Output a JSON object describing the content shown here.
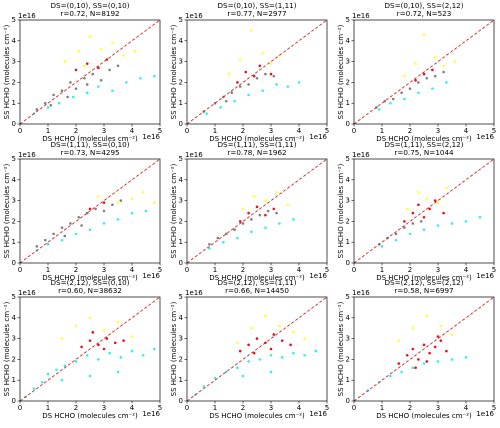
{
  "chart_data": [
    {
      "type": "scatter",
      "title": "DS=(0,10), SS=(0,10)",
      "subtitle": "r=0.72, N=8192",
      "xlabel": "DS HCHO (molecules cm⁻²)",
      "ylabel": "SS HCHO (molecules cm⁻²)",
      "x_offset": "1e16",
      "y_offset": "1e16",
      "xlim": [
        0,
        5
      ],
      "ylim": [
        0,
        5
      ],
      "xticks": [
        0,
        1,
        2,
        3,
        4,
        5
      ],
      "yticks": [
        0,
        1,
        2,
        3,
        4,
        5
      ],
      "identity_line": {
        "color": "#d62728"
      },
      "series": [
        {
          "color": "#808080",
          "x": [
            0.6,
            0.9,
            1.2,
            1.5,
            1.8,
            2.0,
            2.3,
            2.6,
            2.9,
            3.2,
            3.5,
            1.1,
            1.7,
            2.4
          ],
          "values": [
            0.7,
            1.0,
            1.4,
            1.6,
            2.0,
            1.7,
            2.2,
            2.4,
            2.1,
            2.6,
            2.8,
            0.9,
            1.3,
            1.9
          ]
        },
        {
          "color": "#33f0f0",
          "x": [
            0.5,
            1.0,
            1.4,
            1.9,
            2.4,
            2.8,
            3.3,
            3.8,
            4.3,
            4.8
          ],
          "values": [
            0.5,
            0.8,
            1.0,
            1.3,
            1.5,
            1.8,
            1.6,
            2.0,
            2.2,
            2.3
          ]
        },
        {
          "color": "#ffff33",
          "x": [
            1.6,
            2.1,
            2.5,
            2.9,
            3.3,
            3.7,
            4.1,
            2.3
          ],
          "values": [
            3.0,
            3.5,
            4.2,
            3.6,
            3.9,
            3.3,
            3.5,
            2.8
          ]
        },
        {
          "color": "#e8101a",
          "x": [
            2.0,
            2.4,
            2.8,
            3.1
          ],
          "values": [
            2.6,
            2.9,
            2.7,
            3.1
          ]
        }
      ]
    },
    {
      "type": "scatter",
      "title": "DS=(0,10), SS=(1,11)",
      "subtitle": "r=0.77, N=2977",
      "xlabel": "DS HCHO (molecules cm⁻²)",
      "ylabel": "SS HCHO (molecules cm⁻²)",
      "x_offset": "1e16",
      "y_offset": "1e16",
      "xlim": [
        0,
        5
      ],
      "ylim": [
        0,
        5
      ],
      "xticks": [
        0,
        1,
        2,
        3,
        4,
        5
      ],
      "yticks": [
        0,
        1,
        2,
        3,
        4,
        5
      ],
      "identity_line": {
        "color": "#d62728"
      },
      "series": [
        {
          "color": "#808080",
          "x": [
            0.6,
            1.0,
            1.3,
            1.6,
            1.9,
            2.2,
            2.5,
            2.8,
            3.1,
            1.4
          ],
          "values": [
            0.6,
            1.0,
            1.3,
            1.5,
            1.8,
            1.9,
            2.2,
            2.4,
            2.3,
            1.1
          ]
        },
        {
          "color": "#33f0f0",
          "x": [
            0.7,
            1.2,
            1.7,
            2.2,
            2.7,
            3.2,
            3.6,
            4.0
          ],
          "values": [
            0.5,
            0.8,
            1.1,
            1.4,
            1.6,
            1.9,
            1.8,
            2.0
          ]
        },
        {
          "color": "#ffff33",
          "x": [
            1.5,
            1.9,
            2.3,
            2.7,
            3.0,
            3.3
          ],
          "values": [
            2.4,
            3.1,
            4.5,
            3.4,
            2.9,
            3.3
          ]
        },
        {
          "color": "#e8101a",
          "x": [
            1.8,
            2.1,
            2.4,
            2.6,
            3.0
          ],
          "values": [
            2.0,
            2.5,
            2.3,
            2.8,
            2.4
          ]
        }
      ]
    },
    {
      "type": "scatter",
      "title": "DS=(0,10), SS=(2,12)",
      "subtitle": "r=0.72, N=523",
      "xlabel": "DS HCHO (molecules cm⁻²)",
      "ylabel": "SS HCHO (molecules cm⁻²)",
      "x_offset": "1e16",
      "y_offset": "1e16",
      "xlim": [
        0,
        5
      ],
      "ylim": [
        0,
        5
      ],
      "xticks": [
        0,
        1,
        2,
        3,
        4,
        5
      ],
      "yticks": [
        0,
        1,
        2,
        3,
        4,
        5
      ],
      "identity_line": {
        "color": "#d62728"
      },
      "series": [
        {
          "color": "#808080",
          "x": [
            0.8,
            1.1,
            1.4,
            1.7,
            2.0,
            2.3,
            2.6,
            2.9,
            3.2
          ],
          "values": [
            0.8,
            1.1,
            1.2,
            1.5,
            1.7,
            2.0,
            2.2,
            2.3,
            2.5
          ]
        },
        {
          "color": "#33f0f0",
          "x": [
            0.9,
            1.3,
            1.8,
            2.3,
            2.8,
            3.3
          ],
          "values": [
            0.7,
            1.0,
            1.2,
            1.5,
            1.7,
            2.0
          ]
        },
        {
          "color": "#ffff33",
          "x": [
            1.8,
            2.2,
            2.5,
            2.9,
            3.2,
            3.6
          ],
          "values": [
            2.3,
            2.9,
            4.3,
            3.2,
            2.8,
            3.0
          ]
        },
        {
          "color": "#e8101a",
          "x": [
            2.2,
            2.5,
            2.8
          ],
          "values": [
            2.1,
            2.4,
            2.6
          ]
        }
      ]
    },
    {
      "type": "scatter",
      "title": "DS=(1,11), SS=(0,10)",
      "subtitle": "r=0.73, N=4295",
      "xlabel": "DS HCHO (molecules cm⁻²)",
      "ylabel": "SS HCHO (molecules cm⁻²)",
      "x_offset": "1e16",
      "y_offset": "1e16",
      "xlim": [
        0,
        5
      ],
      "ylim": [
        0,
        5
      ],
      "xticks": [
        0,
        1,
        2,
        3,
        4,
        5
      ],
      "yticks": [
        0,
        1,
        2,
        3,
        4,
        5
      ],
      "identity_line": {
        "color": "#d62728"
      },
      "series": [
        {
          "color": "#808080",
          "x": [
            0.6,
            0.9,
            1.2,
            1.5,
            1.8,
            2.1,
            2.4,
            2.7,
            3.0,
            3.3,
            3.6,
            1.0,
            1.6,
            2.2
          ],
          "values": [
            0.8,
            1.1,
            1.4,
            1.7,
            1.9,
            2.2,
            2.4,
            2.6,
            2.5,
            2.8,
            3.0,
            0.9,
            1.3,
            1.8
          ]
        },
        {
          "color": "#33f0f0",
          "x": [
            0.6,
            1.0,
            1.5,
            2.0,
            2.5,
            3.0,
            3.5,
            4.0,
            4.5
          ],
          "values": [
            0.6,
            0.9,
            1.1,
            1.4,
            1.6,
            1.9,
            2.1,
            2.4,
            2.5
          ]
        },
        {
          "color": "#ffff33",
          "x": [
            2.8,
            3.5,
            4.0,
            4.4,
            4.8
          ],
          "values": [
            3.2,
            2.9,
            3.1,
            3.4,
            2.9
          ]
        },
        {
          "color": "#e8101a",
          "x": [
            2.5,
            3.0
          ],
          "values": [
            2.6,
            2.9
          ]
        }
      ]
    },
    {
      "type": "scatter",
      "title": "DS=(1,11), SS=(1,11)",
      "subtitle": "r=0.78, N=1962",
      "xlabel": "DS HCHO (molecules cm⁻²)",
      "ylabel": "SS HCHO (molecules cm⁻²)",
      "x_offset": "1e16",
      "y_offset": "1e16",
      "xlim": [
        0,
        5
      ],
      "ylim": [
        0,
        5
      ],
      "xticks": [
        0,
        1,
        2,
        3,
        4,
        5
      ],
      "yticks": [
        0,
        1,
        2,
        3,
        4,
        5
      ],
      "identity_line": {
        "color": "#d62728"
      },
      "series": [
        {
          "color": "#808080",
          "x": [
            0.8,
            1.1,
            1.4,
            1.7,
            2.0,
            2.3,
            2.6,
            2.9,
            3.2
          ],
          "values": [
            0.9,
            1.2,
            1.4,
            1.6,
            1.9,
            2.1,
            2.3,
            2.5,
            2.4
          ]
        },
        {
          "color": "#33f0f0",
          "x": [
            0.8,
            1.3,
            1.8,
            2.3,
            2.8,
            3.3,
            3.8
          ],
          "values": [
            0.7,
            1.0,
            1.2,
            1.5,
            1.7,
            1.9,
            2.1
          ]
        },
        {
          "color": "#ffff33",
          "x": [
            2.0,
            2.4,
            2.8,
            3.2,
            3.6
          ],
          "values": [
            2.6,
            3.2,
            3.0,
            3.4,
            2.8
          ]
        },
        {
          "color": "#e8101a",
          "x": [
            1.9,
            2.2,
            2.5,
            2.8,
            3.1
          ],
          "values": [
            2.0,
            2.4,
            2.7,
            2.3,
            2.6
          ]
        }
      ]
    },
    {
      "type": "scatter",
      "title": "DS=(1,11), SS=(2,12)",
      "subtitle": "r=0.75, N=1044",
      "xlabel": "DS HCHO (molecules cm⁻²)",
      "ylabel": "SS HCHO (molecules cm⁻²)",
      "x_offset": "1e16",
      "y_offset": "1e16",
      "xlim": [
        0,
        5
      ],
      "ylim": [
        0,
        5
      ],
      "xticks": [
        0,
        1,
        2,
        3,
        4,
        5
      ],
      "yticks": [
        0,
        1,
        2,
        3,
        4,
        5
      ],
      "identity_line": {
        "color": "#d62728"
      },
      "series": [
        {
          "color": "#808080",
          "x": [
            0.9,
            1.2,
            1.5,
            1.8,
            2.1,
            2.4
          ],
          "values": [
            0.9,
            1.2,
            1.4,
            1.7,
            1.9,
            2.0
          ]
        },
        {
          "color": "#33f0f0",
          "x": [
            1.0,
            1.5,
            2.0,
            2.5,
            3.0,
            3.5,
            4.0,
            4.5
          ],
          "values": [
            0.8,
            1.1,
            1.4,
            1.6,
            1.8,
            1.9,
            2.0,
            2.2
          ]
        },
        {
          "color": "#ffff33",
          "x": [
            1.9,
            2.3,
            2.6,
            3.0,
            3.3
          ],
          "values": [
            2.6,
            3.4,
            3.1,
            2.9,
            3.6
          ]
        },
        {
          "color": "#e8101a",
          "x": [
            1.8,
            2.1,
            2.3,
            2.5,
            2.7,
            2.9,
            3.2
          ],
          "values": [
            2.0,
            2.4,
            2.8,
            2.2,
            2.6,
            3.0,
            2.4
          ]
        }
      ]
    },
    {
      "type": "scatter",
      "title": "DS=(2,12), SS=(0,10)",
      "subtitle": "r=0.60, N=38632",
      "xlabel": "DS HCHO (molecules cm⁻²)",
      "ylabel": "SS HCHO (molecules cm⁻²)",
      "x_offset": "1e16",
      "y_offset": "1e16",
      "xlim": [
        0,
        5
      ],
      "ylim": [
        0,
        5
      ],
      "xticks": [
        0,
        1,
        2,
        3,
        4,
        5
      ],
      "yticks": [
        0,
        1,
        2,
        3,
        4,
        5
      ],
      "identity_line": {
        "color": "#d62728"
      },
      "series": [
        {
          "color": "#33f0f0",
          "x": [
            0.2,
            0.5,
            0.8,
            1.0,
            1.3,
            1.6,
            2.0,
            2.4,
            2.8,
            3.2,
            3.6,
            4.0,
            4.4,
            4.8,
            1.5,
            2.5,
            3.5
          ],
          "values": [
            0.2,
            0.6,
            0.9,
            1.3,
            1.5,
            1.7,
            1.9,
            2.2,
            2.0,
            2.3,
            2.1,
            2.4,
            2.2,
            2.5,
            1.0,
            1.2,
            1.4
          ]
        },
        {
          "color": "#ffff33",
          "x": [
            1.5,
            2.0,
            2.5,
            3.0,
            3.5,
            4.0
          ],
          "values": [
            3.0,
            3.6,
            4.0,
            3.4,
            3.8,
            3.1
          ]
        },
        {
          "color": "#e8101a",
          "x": [
            2.2,
            2.5,
            2.8,
            3.1,
            3.4,
            3.7,
            2.6,
            3.0
          ],
          "values": [
            2.6,
            2.9,
            2.7,
            3.0,
            2.8,
            2.9,
            3.3,
            2.5
          ]
        }
      ]
    },
    {
      "type": "scatter",
      "title": "DS=(2,12), SS=(1,11)",
      "subtitle": "r=0.66, N=14450",
      "xlabel": "DS HCHO (molecules cm⁻²)",
      "ylabel": "SS HCHO (molecules cm⁻²)",
      "x_offset": "1e16",
      "y_offset": "1e16",
      "xlim": [
        0,
        5
      ],
      "ylim": [
        0,
        5
      ],
      "xticks": [
        0,
        1,
        2,
        3,
        4,
        5
      ],
      "yticks": [
        0,
        1,
        2,
        3,
        4,
        5
      ],
      "identity_line": {
        "color": "#d62728"
      },
      "series": [
        {
          "color": "#33f0f0",
          "x": [
            0.3,
            0.6,
            1.0,
            1.4,
            1.8,
            2.2,
            2.6,
            3.0,
            3.4,
            3.8,
            4.2,
            4.6,
            2.0,
            3.0
          ],
          "values": [
            0.3,
            0.7,
            1.1,
            1.4,
            1.6,
            1.9,
            2.0,
            2.2,
            2.1,
            2.3,
            2.2,
            2.4,
            1.2,
            1.4
          ]
        },
        {
          "color": "#ffff33",
          "x": [
            1.8,
            2.3,
            2.8,
            3.3,
            3.8,
            4.2
          ],
          "values": [
            2.8,
            3.5,
            4.1,
            3.6,
            3.3,
            3.0
          ]
        },
        {
          "color": "#e8101a",
          "x": [
            1.9,
            2.2,
            2.5,
            2.8,
            3.1,
            3.4,
            3.7,
            2.4,
            3.0
          ],
          "values": [
            2.4,
            2.7,
            3.0,
            2.8,
            3.2,
            2.9,
            2.7,
            2.3,
            2.5
          ]
        }
      ]
    },
    {
      "type": "scatter",
      "title": "DS=(2,12), SS=(2,12)",
      "subtitle": "r=0.58, N=6997",
      "xlabel": "DS HCHO (molecules cm⁻²)",
      "ylabel": "SS HCHO (molecules cm⁻²)",
      "x_offset": "1e16",
      "y_offset": "1e16",
      "xlim": [
        0,
        5
      ],
      "ylim": [
        0,
        5
      ],
      "xticks": [
        0,
        1,
        2,
        3,
        4,
        5
      ],
      "yticks": [
        0,
        1,
        2,
        3,
        4,
        5
      ],
      "identity_line": {
        "color": "#d62728"
      },
      "series": [
        {
          "color": "#33f0f0",
          "x": [
            0.5,
            0.9,
            1.3,
            1.7,
            2.1,
            2.5,
            3.0,
            3.5,
            4.0
          ],
          "values": [
            0.5,
            0.9,
            1.2,
            1.4,
            1.6,
            1.8,
            1.9,
            2.0,
            2.1
          ]
        },
        {
          "color": "#ffff33",
          "x": [
            1.6,
            2.1,
            2.6,
            3.1,
            3.5
          ],
          "values": [
            2.9,
            3.5,
            4.1,
            3.6,
            3.2
          ]
        },
        {
          "color": "#e8101a",
          "x": [
            1.6,
            1.9,
            2.1,
            2.3,
            2.5,
            2.7,
            2.9,
            3.1,
            3.3,
            2.2,
            2.6,
            3.0
          ],
          "values": [
            1.8,
            2.2,
            2.5,
            2.0,
            2.7,
            2.3,
            2.6,
            2.9,
            2.4,
            1.6,
            1.9,
            3.1
          ]
        }
      ]
    }
  ]
}
